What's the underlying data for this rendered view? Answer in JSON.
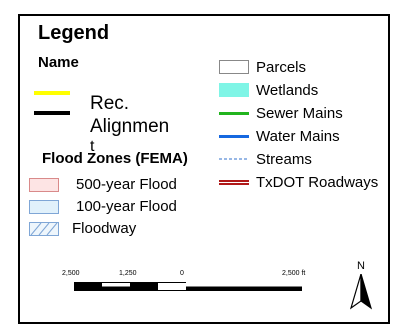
{
  "legend": {
    "title": "Legend",
    "name_heading": "Name",
    "rec_label_line1": "Rec.",
    "rec_label_line2": "Alignmen",
    "rec_label_line3": "t",
    "flood_heading": "Flood Zones (FEMA)",
    "flood_items": [
      {
        "label": "500-year Flood",
        "color": "#fde4e4",
        "border": "#e08080"
      },
      {
        "label": "100-year Flood",
        "color": "#e1f1fb",
        "border": "#7fa6d6"
      },
      {
        "label": "Floodway",
        "color": "#ffffff",
        "border": "#7fa6d6"
      }
    ],
    "layers": [
      {
        "label": "Parcels",
        "color": "#ffffff"
      },
      {
        "label": "Wetlands",
        "color": "#7ff5e6"
      },
      {
        "label": "Sewer Mains",
        "color": "#22b41e"
      },
      {
        "label": "Water Mains",
        "color": "#1668e0"
      },
      {
        "label": "Streams",
        "color": "#5a8ed8"
      },
      {
        "label": "TxDOT Roadways",
        "color": "#b01818"
      }
    ],
    "rec_colors": {
      "yellow": "#ffff00",
      "black": "#000000"
    }
  },
  "scalebar": {
    "ticks": [
      "2,500",
      "1,250",
      "0",
      "2,500 ft"
    ]
  },
  "north_arrow": {
    "label": "N"
  }
}
